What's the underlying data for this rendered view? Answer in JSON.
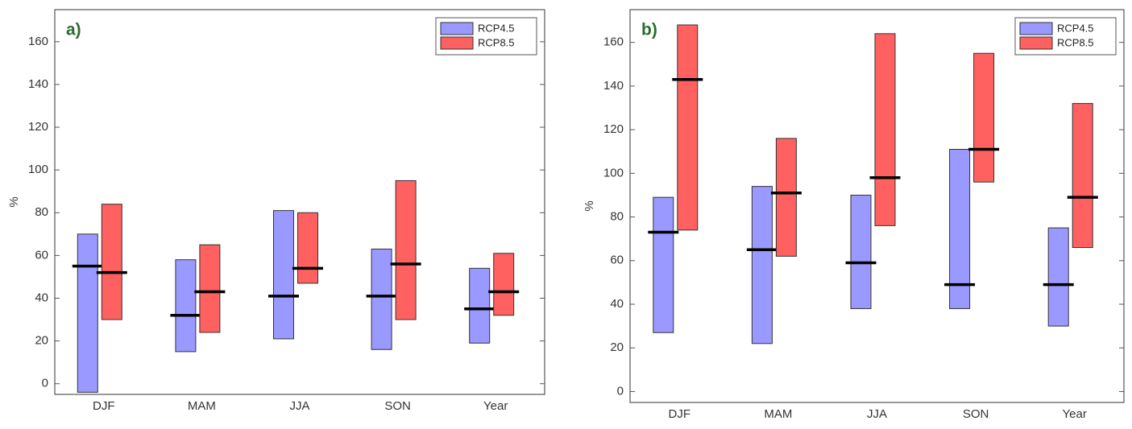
{
  "chart_data": [
    {
      "type": "range_bar",
      "annotation": "a)",
      "ylabel": "%",
      "categories": [
        "DJF",
        "MAM",
        "JJA",
        "SON",
        "Year"
      ],
      "series": [
        {
          "name": "RCP4.5",
          "color": "#9999ff",
          "low": [
            -4,
            15,
            21,
            16,
            19
          ],
          "high": [
            70,
            58,
            81,
            63,
            54
          ],
          "median": [
            55,
            32,
            41,
            41,
            35
          ]
        },
        {
          "name": "RCP8.5",
          "color": "#ff6060",
          "low": [
            30,
            24,
            47,
            30,
            32
          ],
          "high": [
            84,
            65,
            80,
            95,
            61
          ],
          "median": [
            52,
            43,
            54,
            56,
            43
          ]
        }
      ],
      "ylim": [
        -5,
        175
      ],
      "yticks": [
        0,
        20,
        40,
        60,
        80,
        100,
        120,
        140,
        160
      ],
      "legend": "upper right"
    },
    {
      "type": "range_bar",
      "annotation": "b)",
      "ylabel": "%",
      "categories": [
        "DJF",
        "MAM",
        "JJA",
        "SON",
        "Year"
      ],
      "series": [
        {
          "name": "RCP4.5",
          "color": "#9999ff",
          "low": [
            27,
            22,
            38,
            38,
            30
          ],
          "high": [
            89,
            94,
            90,
            111,
            75
          ],
          "median": [
            73,
            65,
            59,
            49,
            49
          ]
        },
        {
          "name": "RCP8.5",
          "color": "#ff6060",
          "low": [
            74,
            62,
            76,
            96,
            66
          ],
          "high": [
            168,
            116,
            164,
            155,
            132
          ],
          "median": [
            143,
            91,
            98,
            111,
            89
          ]
        }
      ],
      "ylim": [
        -5,
        175
      ],
      "yticks": [
        0,
        20,
        40,
        60,
        80,
        100,
        120,
        140,
        160
      ],
      "legend": "upper right"
    }
  ]
}
